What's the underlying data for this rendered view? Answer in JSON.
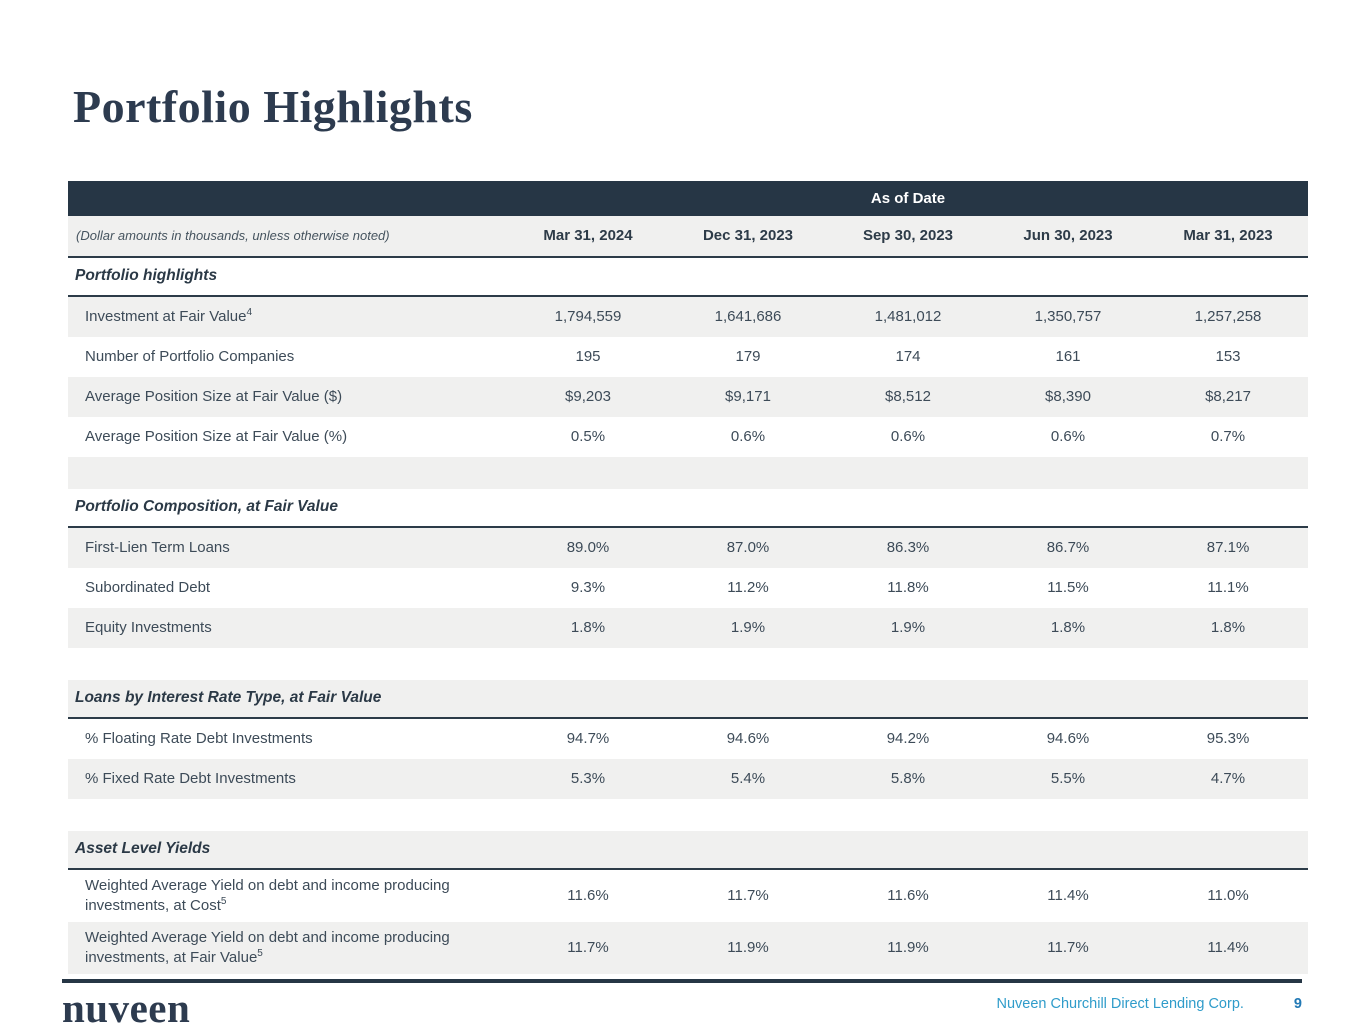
{
  "page": {
    "title": "Portfolio Highlights"
  },
  "table": {
    "band_label": "As of Date",
    "note": "(Dollar amounts in thousands, unless otherwise noted)",
    "columns": [
      "Mar 31, 2024",
      "Dec 31, 2023",
      "Sep 30, 2023",
      "Jun 30, 2023",
      "Mar 31, 2023"
    ],
    "sections": [
      {
        "header": "Portfolio highlights",
        "rows": [
          {
            "label": "Investment at Fair Value",
            "sup": "4",
            "values": [
              "1,794,559",
              "1,641,686",
              "1,481,012",
              "1,350,757",
              "1,257,258"
            ]
          },
          {
            "label": "Number of Portfolio Companies",
            "values": [
              "195",
              "179",
              "174",
              "161",
              "153"
            ]
          },
          {
            "label": "Average Position Size at Fair Value ($)",
            "values": [
              "$9,203",
              "$9,171",
              "$8,512",
              "$8,390",
              "$8,217"
            ]
          },
          {
            "label": "Average Position Size at Fair Value (%)",
            "values": [
              "0.5%",
              "0.6%",
              "0.6%",
              "0.6%",
              "0.7%"
            ]
          }
        ]
      },
      {
        "header": "Portfolio Composition, at Fair Value",
        "rows": [
          {
            "label": "First-Lien Term Loans",
            "values": [
              "89.0%",
              "87.0%",
              "86.3%",
              "86.7%",
              "87.1%"
            ]
          },
          {
            "label": "Subordinated Debt",
            "values": [
              "9.3%",
              "11.2%",
              "11.8%",
              "11.5%",
              "11.1%"
            ]
          },
          {
            "label": "Equity Investments",
            "values": [
              "1.8%",
              "1.9%",
              "1.9%",
              "1.8%",
              "1.8%"
            ]
          }
        ]
      },
      {
        "header": "Loans by Interest Rate Type, at Fair Value",
        "rows": [
          {
            "label": "% Floating Rate Debt Investments",
            "values": [
              "94.7%",
              "94.6%",
              "94.2%",
              "94.6%",
              "95.3%"
            ]
          },
          {
            "label": "% Fixed Rate Debt Investments",
            "values": [
              "5.3%",
              "5.4%",
              "5.8%",
              "5.5%",
              "4.7%"
            ]
          }
        ]
      },
      {
        "header": "Asset Level Yields",
        "rows": [
          {
            "label": "Weighted Average Yield on debt and income producing investments, at Cost",
            "sup": "5",
            "values": [
              "11.6%",
              "11.7%",
              "11.6%",
              "11.4%",
              "11.0%"
            ]
          },
          {
            "label": "Weighted Average Yield on debt and income producing investments, at Fair Value",
            "sup": "5",
            "values": [
              "11.7%",
              "11.9%",
              "11.9%",
              "11.7%",
              "11.4%"
            ]
          }
        ]
      }
    ]
  },
  "footer": {
    "logo": "nuveen",
    "company": "Nuveen Churchill Direct Lending Corp.",
    "page_number": "9"
  },
  "colors": {
    "band_navy": "#263645",
    "row_gray": "#f0f0ef",
    "border_dark": "#2c3b48",
    "title_navy": "#2d3b4f",
    "footer_teal": "#2f9cca",
    "page_number_blue": "#2279b5"
  }
}
